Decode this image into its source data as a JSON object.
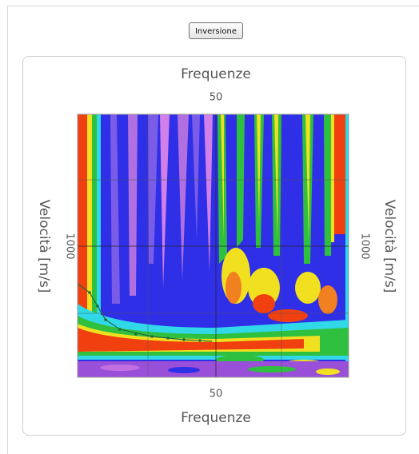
{
  "button": {
    "label": "Inversione"
  },
  "plot": {
    "x_axis_title_top": "Frequenze",
    "x_tick_top": 50,
    "x_axis_title_bottom": "Frequenze",
    "x_tick_bottom": 50,
    "y_axis_title_left": "Velocità [m/s]",
    "y_tick_left": 1000,
    "y_axis_title_right": "Velocità [m/s]",
    "y_tick_right": 1000
  }
}
